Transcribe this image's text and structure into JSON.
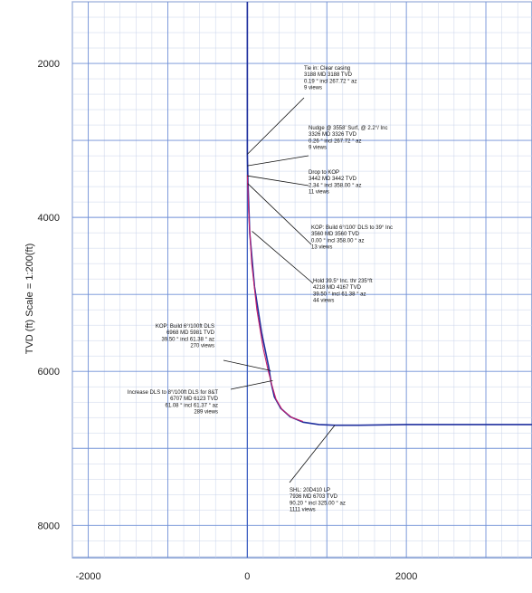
{
  "chart_data": {
    "type": "line",
    "title": "",
    "ylabel": "TVD (ft) Scale = 1:200(ft)",
    "xlabel": "",
    "xlim": [
      -2200,
      3580
    ],
    "ylim": [
      1200,
      8420
    ],
    "y_inverted": true,
    "grid": true,
    "x_ticks": [
      {
        "value": -2000,
        "label": "-2000"
      },
      {
        "value": 0,
        "label": "0"
      },
      {
        "value": 2000,
        "label": "2000"
      }
    ],
    "y_ticks": [
      {
        "value": 2000,
        "label": "2000"
      },
      {
        "value": 4000,
        "label": "4000"
      },
      {
        "value": 6000,
        "label": "6000"
      },
      {
        "value": 8000,
        "label": "8000"
      }
    ],
    "series": [
      {
        "color": "#1f2f9e",
        "x": [
          0,
          0,
          8,
          30,
          90,
          180,
          270,
          300,
          340,
          420,
          540,
          700,
          900,
          1100,
          1400,
          2000,
          3000,
          3580
        ],
        "y": [
          1200,
          3180,
          3560,
          4200,
          4900,
          5500,
          5950,
          6150,
          6330,
          6480,
          6590,
          6660,
          6690,
          6700,
          6700,
          6690,
          6690,
          6690
        ]
      },
      {
        "color": "#c8206e",
        "x": [
          0,
          5,
          20,
          55,
          120,
          200,
          265,
          310,
          360,
          440,
          560,
          700
        ],
        "y": [
          3450,
          3600,
          4000,
          4600,
          5200,
          5700,
          6000,
          6180,
          6360,
          6500,
          6600,
          6650
        ]
      }
    ],
    "annotations": [
      {
        "lines": [
          "Tie in: Clear casing",
          "3188 MD 3188 TVD",
          "0.19 ° incl 267.72 ° az",
          "9 views"
        ],
        "point": [
          0,
          3180
        ]
      },
      {
        "lines": [
          "Nudge @ 3558' Surf, @ 2.2°/ Inc",
          "3326 MD 3326 TVD",
          "0.26 ° incl 267.72 ° az",
          "9 views"
        ],
        "point": [
          0,
          3330
        ]
      },
      {
        "lines": [
          "Drop to KOP",
          "3442 MD 3442 TVD",
          "2.34 ° incl 358.00 ° az",
          "11 views"
        ],
        "point": [
          0,
          3460
        ]
      },
      {
        "lines": [
          "KOP: Build 6°/100' DLS to 39° Inc",
          "3560 MD 3560 TVD",
          "0.00 ° incl 358.00 ° az",
          "13 views"
        ],
        "point": [
          5,
          3560
        ]
      },
      {
        "lines": [
          "Hold 39.5° Inc. thr 235°ft",
          "4218 MD 4167 TVD",
          "39.50 ° incl 61.38 ° az",
          "44 views"
        ],
        "point": [
          60,
          4180
        ]
      },
      {
        "lines": [
          "KOP: Build 6°/100ft DLS",
          "6968 MD 5981 TVD",
          "39.50 ° incl 61.38 ° az",
          "270 views"
        ],
        "point": [
          295,
          5990
        ]
      },
      {
        "lines": [
          "Increase DLS to 8°/100ft DLS for 8&T",
          "6707 MD 6123 TVD",
          "61.08 ° incl 61.37 ° az",
          "289 views"
        ],
        "point": [
          320,
          6120
        ]
      },
      {
        "lines": [
          "SHL: 20D410 LP",
          "7936 MD 6703 TVD",
          "90.20 ° incl 325.00 ° az",
          "1111 views"
        ],
        "point": [
          1100,
          6700
        ]
      }
    ]
  }
}
